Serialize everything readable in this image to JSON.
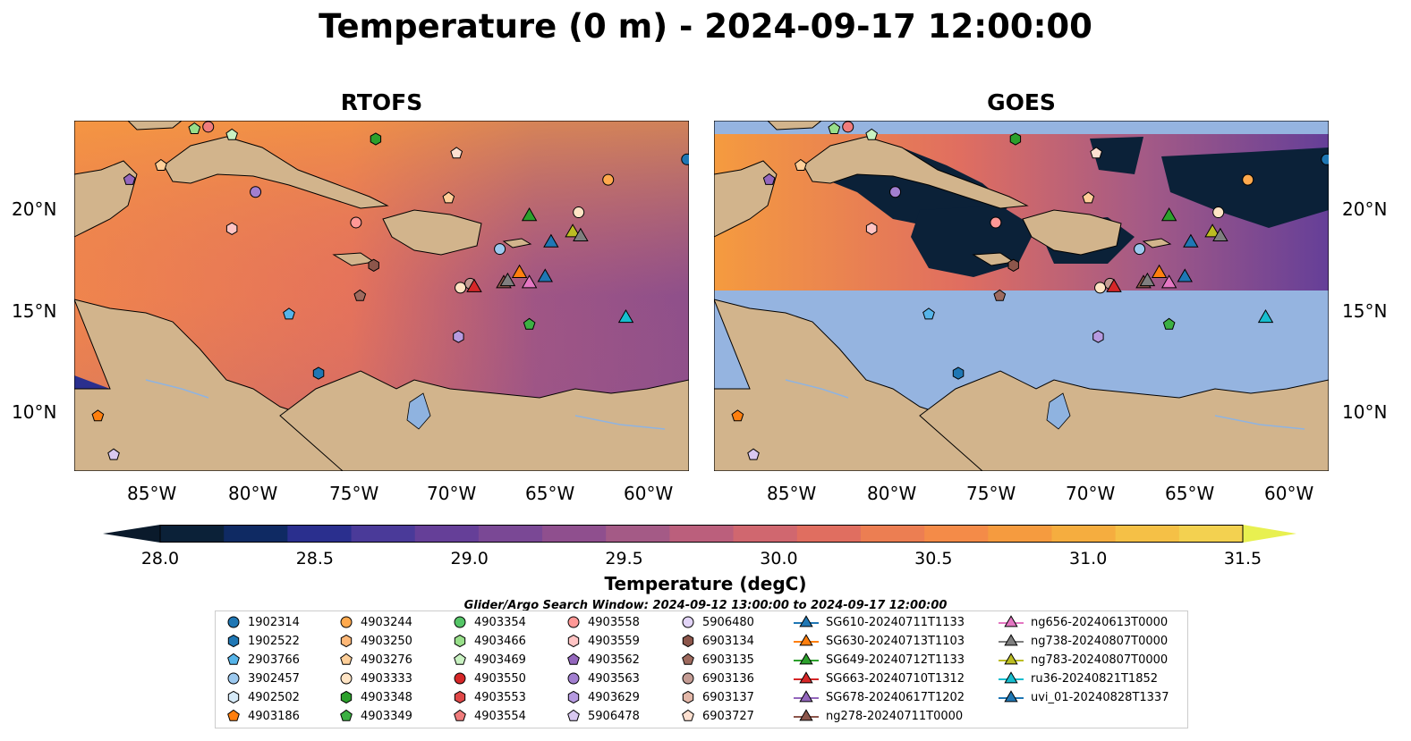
{
  "title": "Temperature (0 m) - 2024-09-17 12:00:00",
  "panels": [
    {
      "title": "RTOFS"
    },
    {
      "title": "GOES"
    }
  ],
  "lat_labels": [
    "20°N",
    "15°N",
    "10°N"
  ],
  "lon_labels": [
    "85°W",
    "80°W",
    "75°W",
    "70°W",
    "65°W",
    "60°W"
  ],
  "colorbar": {
    "label": "Temperature (degC)",
    "ticks": [
      "28.0",
      "28.5",
      "29.0",
      "29.5",
      "30.0",
      "30.5",
      "31.0",
      "31.5"
    ],
    "range": [
      28.0,
      31.5
    ],
    "colors": [
      "#0b2138",
      "#0f2a63",
      "#2a2f8e",
      "#4a3a99",
      "#653f98",
      "#7a4895",
      "#8f4f8e",
      "#a45a86",
      "#bb5f7c",
      "#d0676f",
      "#e06e60",
      "#ec7e52",
      "#f48b48",
      "#f59b3f",
      "#f5ad3f",
      "#f5c046",
      "#f3d150"
    ],
    "extend_low": "#0a1a2b",
    "extend_high": "#e8f050"
  },
  "search_window": "Glider/Argo Search Window: 2024-09-12 13:00:00 to 2024-09-17 12:00:00",
  "legend": {
    "columns": [
      [
        {
          "label": "1902314",
          "marker": "circle",
          "color": "#1f77b4"
        },
        {
          "label": "1902522",
          "marker": "hexagon",
          "color": "#1f77b4"
        },
        {
          "label": "2903766",
          "marker": "pentagon",
          "color": "#56b4e9"
        },
        {
          "label": "3902457",
          "marker": "circle",
          "color": "#9cc9ef"
        },
        {
          "label": "4902502",
          "marker": "hexagon",
          "color": "#d6eaf8"
        },
        {
          "label": "4903186",
          "marker": "pentagon",
          "color": "#ff7f0e"
        }
      ],
      [
        {
          "label": "4903244",
          "marker": "circle",
          "color": "#ffa94d"
        },
        {
          "label": "4903250",
          "marker": "hexagon",
          "color": "#ffb877"
        },
        {
          "label": "4903276",
          "marker": "pentagon",
          "color": "#ffcf99"
        },
        {
          "label": "4903333",
          "marker": "circle",
          "color": "#ffe4c4"
        },
        {
          "label": "4903348",
          "marker": "hexagon",
          "color": "#2ca02c"
        },
        {
          "label": "4903349",
          "marker": "pentagon",
          "color": "#3cb043"
        }
      ],
      [
        {
          "label": "4903354",
          "marker": "circle",
          "color": "#55c567"
        },
        {
          "label": "4903466",
          "marker": "hexagon",
          "color": "#98df8a"
        },
        {
          "label": "4903469",
          "marker": "pentagon",
          "color": "#c9f2c2"
        },
        {
          "label": "4903550",
          "marker": "circle",
          "color": "#d62728"
        },
        {
          "label": "4903553",
          "marker": "hexagon",
          "color": "#e04848"
        },
        {
          "label": "4903554",
          "marker": "pentagon",
          "color": "#f07c7c"
        }
      ],
      [
        {
          "label": "4903558",
          "marker": "circle",
          "color": "#ff9896"
        },
        {
          "label": "4903559",
          "marker": "hexagon",
          "color": "#ffc4c4"
        },
        {
          "label": "4903562",
          "marker": "pentagon",
          "color": "#9467bd"
        },
        {
          "label": "4903563",
          "marker": "circle",
          "color": "#a27fd0"
        },
        {
          "label": "4903629",
          "marker": "hexagon",
          "color": "#b69ae0"
        },
        {
          "label": "5906478",
          "marker": "pentagon",
          "color": "#d9c8f0"
        }
      ],
      [
        {
          "label": "5906480",
          "marker": "circle",
          "color": "#e2d4f7"
        },
        {
          "label": "6903134",
          "marker": "hexagon",
          "color": "#8c564b"
        },
        {
          "label": "6903135",
          "marker": "pentagon",
          "color": "#9e6a5e"
        },
        {
          "label": "6903136",
          "marker": "circle",
          "color": "#c49c94"
        },
        {
          "label": "6903137",
          "marker": "hexagon",
          "color": "#e3b7a8"
        },
        {
          "label": "6903727",
          "marker": "pentagon",
          "color": "#fde0d0"
        }
      ],
      [
        {
          "label": "SG610-20240711T1133",
          "marker": "triangle",
          "color": "#1f77b4"
        },
        {
          "label": "SG630-20240713T1103",
          "marker": "triangle",
          "color": "#ff7f0e"
        },
        {
          "label": "SG649-20240712T1133",
          "marker": "triangle",
          "color": "#2ca02c"
        },
        {
          "label": "SG663-20240710T1312",
          "marker": "triangle",
          "color": "#d62728"
        },
        {
          "label": "SG678-20240617T1202",
          "marker": "triangle",
          "color": "#9467bd"
        },
        {
          "label": "ng278-20240711T0000",
          "marker": "triangle",
          "color": "#8c564b"
        }
      ],
      [
        {
          "label": "ng656-20240613T0000",
          "marker": "triangle",
          "color": "#e377c2"
        },
        {
          "label": "ng738-20240807T0000",
          "marker": "triangle",
          "color": "#7f7f7f"
        },
        {
          "label": "ng783-20240807T0000",
          "marker": "triangle",
          "color": "#bcbd22"
        },
        {
          "label": "ru36-20240821T1852",
          "marker": "triangle",
          "color": "#17becf"
        },
        {
          "label": "uvi_01-20240828T1337",
          "marker": "triangle",
          "color": "#1f77b4"
        }
      ]
    ]
  },
  "markers": [
    {
      "marker": "circle",
      "color": "#1f77b4",
      "lon": -58.1,
      "lat": 22.3
    },
    {
      "marker": "circle",
      "color": "#ffa94d",
      "lon": -62.1,
      "lat": 21.3
    },
    {
      "marker": "circle",
      "color": "#ffe4c4",
      "lon": -63.6,
      "lat": 19.7
    },
    {
      "marker": "circle",
      "color": "#ff9896",
      "lon": -74.9,
      "lat": 19.2
    },
    {
      "marker": "circle",
      "color": "#a27fd0",
      "lon": -80.0,
      "lat": 20.7
    },
    {
      "marker": "hexagon",
      "color": "#ffc4c4",
      "lon": -81.2,
      "lat": 18.9
    },
    {
      "marker": "hexagon",
      "color": "#2ca02c",
      "lon": -73.9,
      "lat": 23.3
    },
    {
      "marker": "pentagon",
      "color": "#fde0d0",
      "lon": -69.8,
      "lat": 22.6
    },
    {
      "marker": "pentagon",
      "color": "#ffcf99",
      "lon": -70.2,
      "lat": 20.4
    },
    {
      "marker": "pentagon",
      "color": "#9467bd",
      "lon": -86.4,
      "lat": 21.3
    },
    {
      "marker": "pentagon",
      "color": "#ffcf99",
      "lon": -84.8,
      "lat": 22.0
    },
    {
      "marker": "pentagon",
      "color": "#98df8a",
      "lon": -83.1,
      "lat": 23.8
    },
    {
      "marker": "pentagon",
      "color": "#c9f2c2",
      "lon": -81.2,
      "lat": 23.5
    },
    {
      "marker": "circle",
      "color": "#f07c7c",
      "lon": -82.4,
      "lat": 23.9
    },
    {
      "marker": "circle",
      "color": "#9cc9ef",
      "lon": -67.6,
      "lat": 17.9
    },
    {
      "marker": "circle",
      "color": "#c49c94",
      "lon": -69.1,
      "lat": 16.2
    },
    {
      "marker": "circle",
      "color": "#ffe4c4",
      "lon": -69.6,
      "lat": 16.0
    },
    {
      "marker": "hexagon",
      "color": "#8c564b",
      "lon": -74.0,
      "lat": 17.1
    },
    {
      "marker": "pentagon",
      "color": "#9e6a5e",
      "lon": -74.7,
      "lat": 15.6
    },
    {
      "marker": "pentagon",
      "color": "#56b4e9",
      "lon": -78.3,
      "lat": 14.7
    },
    {
      "marker": "hexagon",
      "color": "#b69ae0",
      "lon": -69.7,
      "lat": 13.6
    },
    {
      "marker": "pentagon",
      "color": "#3cb043",
      "lon": -66.1,
      "lat": 14.2
    },
    {
      "marker": "hexagon",
      "color": "#1f77b4",
      "lon": -76.8,
      "lat": 11.8
    },
    {
      "marker": "pentagon",
      "color": "#ff7f0e",
      "lon": -88.0,
      "lat": 9.7
    },
    {
      "marker": "pentagon",
      "color": "#d9c8f0",
      "lon": -87.2,
      "lat": 7.8
    },
    {
      "marker": "triangle",
      "color": "#2ca02c",
      "lon": -66.1,
      "lat": 19.5
    },
    {
      "marker": "triangle",
      "color": "#bcbd22",
      "lon": -63.9,
      "lat": 18.7
    },
    {
      "marker": "triangle",
      "color": "#7f7f7f",
      "lon": -63.5,
      "lat": 18.5
    },
    {
      "marker": "triangle",
      "color": "#1f77b4",
      "lon": -65.0,
      "lat": 18.2
    },
    {
      "marker": "triangle",
      "color": "#ff7f0e",
      "lon": -66.6,
      "lat": 16.7
    },
    {
      "marker": "triangle",
      "color": "#1f77b4",
      "lon": -65.3,
      "lat": 16.5
    },
    {
      "marker": "triangle",
      "color": "#e377c2",
      "lon": -66.1,
      "lat": 16.2
    },
    {
      "marker": "triangle",
      "color": "#8c564b",
      "lon": -67.4,
      "lat": 16.2
    },
    {
      "marker": "triangle",
      "color": "#7f7f7f",
      "lon": -67.2,
      "lat": 16.3
    },
    {
      "marker": "triangle",
      "color": "#d62728",
      "lon": -68.9,
      "lat": 16.0
    },
    {
      "marker": "triangle",
      "color": "#17becf",
      "lon": -61.2,
      "lat": 14.5
    }
  ]
}
